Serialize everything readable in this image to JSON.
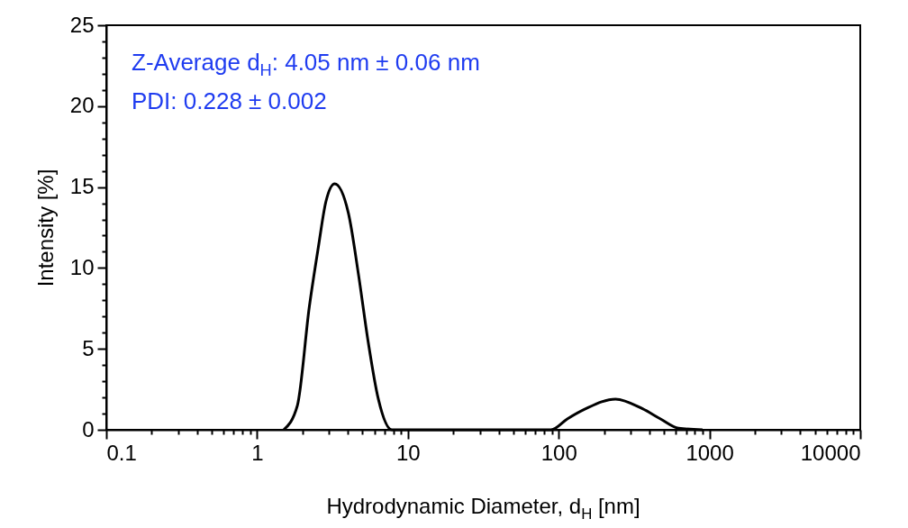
{
  "chart_data": {
    "type": "line",
    "xlabel": "Hydrodynamic Diameter, d$_{H}$ [nm]",
    "ylabel": "Intensity [%]",
    "annotations": [
      "Z-Average d$_{H}$: 4.05 nm ± 0.06 nm",
      "PDI: 0.228 ± 0.002"
    ],
    "x": [
      1.5,
      1.85,
      2.22,
      2.55,
      2.86,
      3.27,
      4.03,
      4.72,
      5.42,
      6.37,
      7.83,
      89,
      114,
      151,
      238,
      360,
      474,
      624,
      900
    ],
    "series": [
      {
        "color": "#000000",
        "values": [
          0,
          1.5,
          7.6,
          11.3,
          14.1,
          15.2,
          13.4,
          9.5,
          5.6,
          1.9,
          0,
          0,
          0.67,
          1.3,
          1.9,
          1.3,
          0.67,
          0.1,
          0
        ]
      }
    ],
    "log": "x",
    "xlim": [
      0.1,
      10000
    ],
    "ylim": [
      0,
      25
    ],
    "xticks": [
      0.1,
      {
        "value": 0.2,
        "label": null
      },
      {
        "value": 0.3,
        "label": null
      },
      {
        "value": 0.4,
        "label": null
      },
      {
        "value": 0.5,
        "label": null
      },
      {
        "value": 0.6,
        "label": null
      },
      {
        "value": 0.7,
        "label": null
      },
      {
        "value": 0.8,
        "label": null
      },
      {
        "value": 0.9,
        "label": null
      },
      1,
      {
        "value": 2,
        "label": null
      },
      {
        "value": 3,
        "label": null
      },
      {
        "value": 4,
        "label": null
      },
      {
        "value": 5,
        "label": null
      },
      {
        "value": 6,
        "label": null
      },
      {
        "value": 7,
        "label": null
      },
      {
        "value": 8,
        "label": null
      },
      {
        "value": 9,
        "label": null
      },
      10,
      {
        "value": 20,
        "label": null
      },
      {
        "value": 30,
        "label": null
      },
      {
        "value": 40,
        "label": null
      },
      {
        "value": 50,
        "label": null
      },
      {
        "value": 60,
        "label": null
      },
      {
        "value": 70,
        "label": null
      },
      {
        "value": 80,
        "label": null
      },
      {
        "value": 90,
        "label": null
      },
      100,
      {
        "value": 200,
        "label": null
      },
      {
        "value": 300,
        "label": null
      },
      {
        "value": 400,
        "label": null
      },
      {
        "value": 500,
        "label": null
      },
      {
        "value": 600,
        "label": null
      },
      {
        "value": 700,
        "label": null
      },
      {
        "value": 800,
        "label": null
      },
      {
        "value": 900,
        "label": null
      },
      1000,
      {
        "value": 2000,
        "label": null
      },
      {
        "value": 3000,
        "label": null
      },
      {
        "value": 4000,
        "label": null
      },
      {
        "value": 5000,
        "label": null
      },
      {
        "value": 6000,
        "label": null
      },
      {
        "value": 7000,
        "label": null
      },
      {
        "value": 8000,
        "label": null
      },
      {
        "value": 9000,
        "label": null
      },
      10000
    ],
    "yticks": [
      0,
      {
        "value": 1,
        "label": null
      },
      {
        "value": 2,
        "label": null
      },
      {
        "value": 3,
        "label": null
      },
      {
        "value": 4,
        "label": null
      },
      5,
      {
        "value": 6,
        "label": null
      },
      {
        "value": 7,
        "label": null
      },
      {
        "value": 8,
        "label": null
      },
      {
        "value": 9,
        "label": null
      },
      10,
      {
        "value": 11,
        "label": null
      },
      {
        "value": 12,
        "label": null
      },
      {
        "value": 13,
        "label": null
      },
      {
        "value": 14,
        "label": null
      },
      15,
      {
        "value": 16,
        "label": null
      },
      {
        "value": 17,
        "label": null
      },
      {
        "value": 18,
        "label": null
      },
      {
        "value": 19,
        "label": null
      },
      20,
      {
        "value": 21,
        "label": null
      },
      {
        "value": 22,
        "label": null
      },
      {
        "value": 23,
        "label": null
      },
      {
        "value": 24,
        "label": null
      },
      25
    ]
  }
}
